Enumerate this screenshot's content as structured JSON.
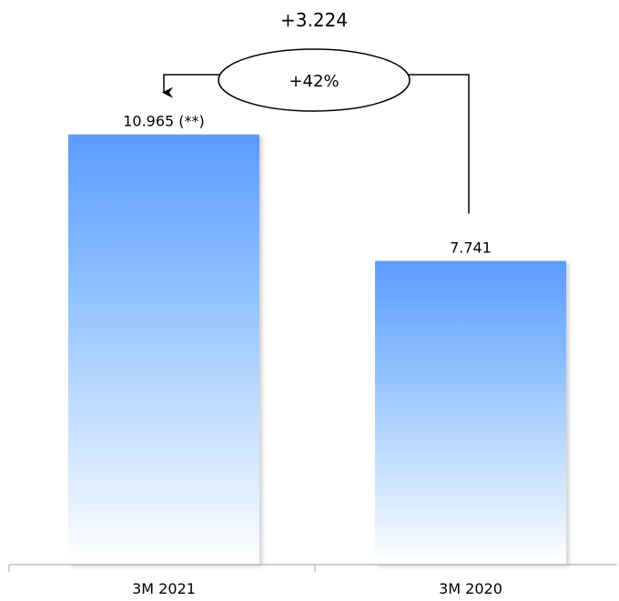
{
  "chart_data": {
    "type": "bar",
    "categories": [
      "3M 2021",
      "3M 2020"
    ],
    "values": [
      10965,
      7741
    ],
    "data_labels": [
      "10.965 (**)",
      "7.741"
    ],
    "title": "",
    "xlabel": "",
    "ylabel": "",
    "ylim": [
      0,
      13000
    ],
    "grid": false,
    "legend": "none",
    "annotation": {
      "difference_label": "+3.224",
      "percent_label": "+42%"
    },
    "colors": {
      "bar_top": "#5b9bff",
      "bar_mid": "#8ec0ff",
      "bar_bottom": "#ffffff",
      "axis": "#a0a0a0",
      "connector": "#000000"
    }
  }
}
